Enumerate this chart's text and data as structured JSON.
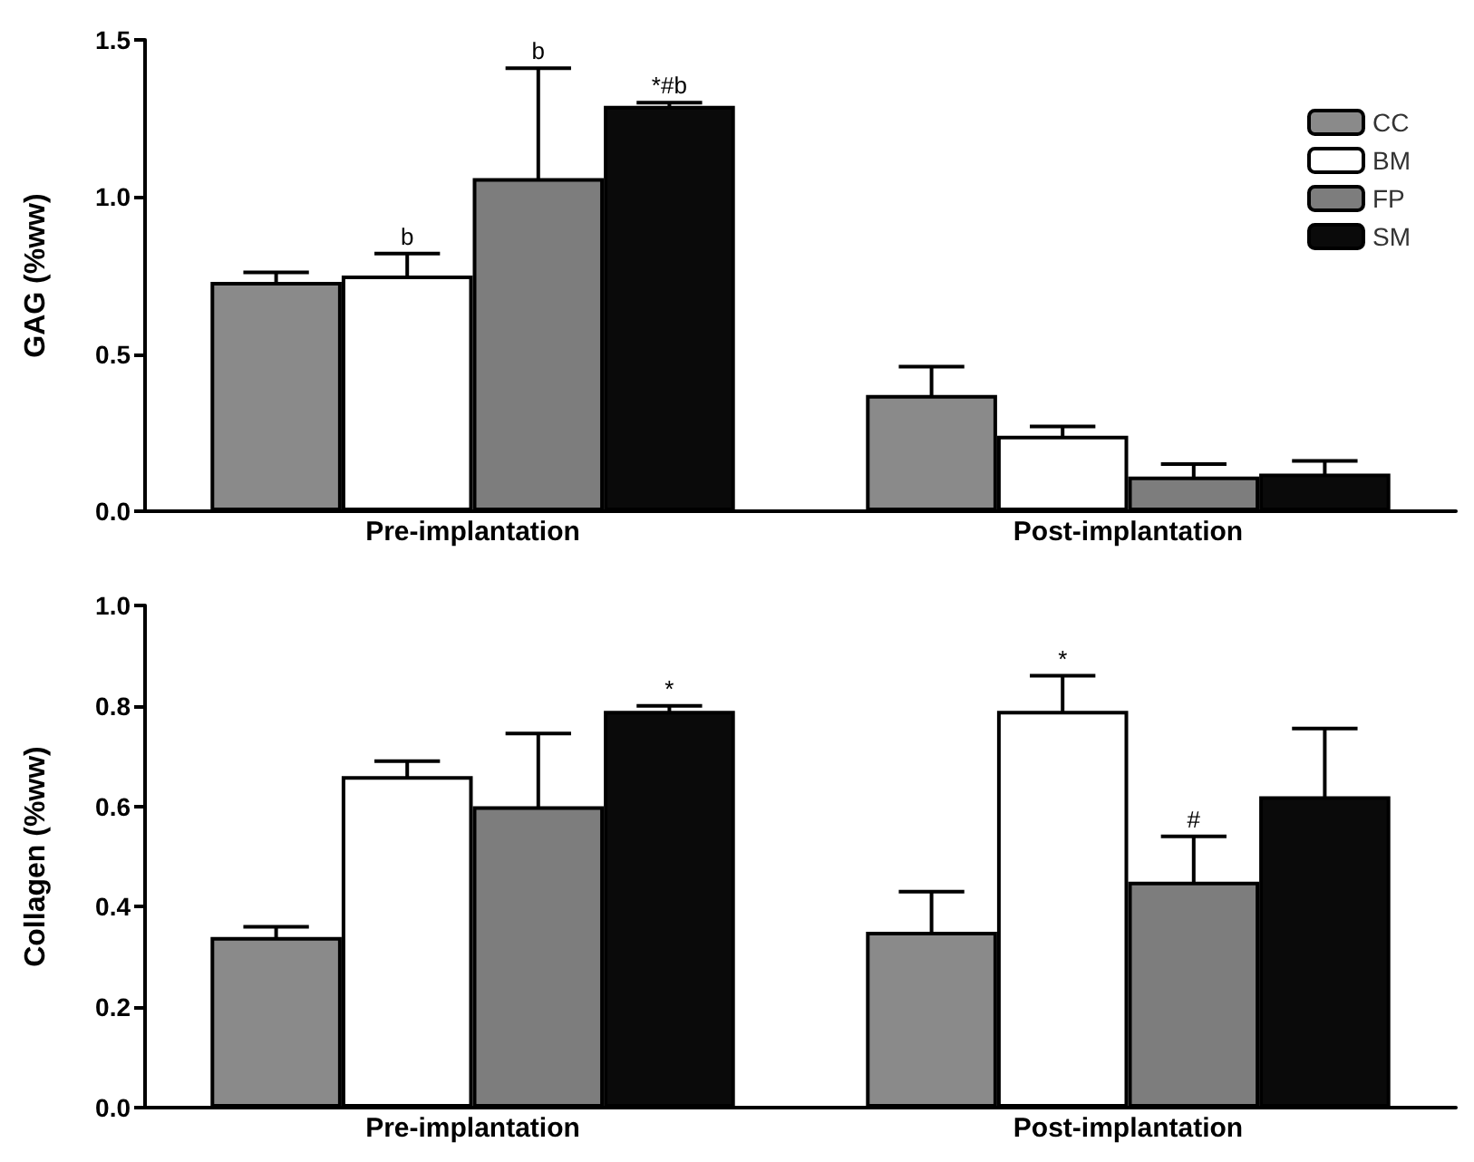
{
  "chart_data": [
    {
      "type": "bar",
      "ylabel": "GAG (%ww)",
      "categories": [
        "Pre-implantation",
        "Post-implantation"
      ],
      "series": [
        {
          "name": "CC",
          "color": "#8a8a8a",
          "values": [
            0.73,
            0.37
          ],
          "errors": [
            0.03,
            0.09
          ]
        },
        {
          "name": "BM",
          "color": "#ffffff",
          "values": [
            0.75,
            0.24
          ],
          "errors": [
            0.07,
            0.03
          ],
          "value_labels": [
            "b",
            null
          ]
        },
        {
          "name": "FP",
          "color": "#7d7d7d",
          "values": [
            1.06,
            0.11
          ],
          "errors": [
            0.35,
            0.04
          ]
        },
        {
          "name": "SM",
          "color": "#0a0a0a",
          "values": [
            1.29,
            0.12
          ],
          "errors": [
            0.01,
            0.04
          ],
          "value_labels": [
            "*#b",
            null
          ]
        }
      ],
      "ylim": [
        0,
        1.5
      ],
      "yticks": [
        {
          "value": 0,
          "label": "0.0"
        },
        {
          "value": 0.5,
          "label": "0.5"
        },
        {
          "value": 1,
          "label": "1.0"
        },
        {
          "value": 1.5,
          "label": "1.5"
        }
      ],
      "annotations": [
        "b"
      ],
      "legend": "top right",
      "grid": false
    },
    {
      "type": "bar",
      "ylabel": "Collagen (%ww)",
      "categories": [
        "Pre-implantation",
        "Post-implantation"
      ],
      "series": [
        {
          "color": "#8a8a8a",
          "values": [
            0.34,
            0.35
          ],
          "errors": [
            0.02,
            0.08
          ]
        },
        {
          "color": "#ffffff",
          "values": [
            0.66,
            0.79
          ],
          "errors": [
            0.03,
            0.07
          ],
          "value_labels": [
            null,
            "*"
          ]
        },
        {
          "color": "#7d7d7d",
          "values": [
            0.6,
            0.45
          ],
          "errors": [
            0.145,
            0.09
          ],
          "value_labels": [
            null,
            "#"
          ]
        },
        {
          "color": "#0a0a0a",
          "values": [
            0.79,
            0.62
          ],
          "errors": [
            0.01,
            0.135
          ],
          "value_labels": [
            "*",
            null
          ]
        }
      ],
      "ylim": [
        0,
        1
      ],
      "yticks": [
        {
          "value": 0,
          "label": "0.0"
        },
        {
          "value": 0.2,
          "label": "0.2"
        },
        {
          "value": 0.4,
          "label": "0.4"
        },
        {
          "value": 0.6,
          "label": "0.6"
        },
        {
          "value": 0.8,
          "label": "0.8"
        },
        {
          "value": 1,
          "label": "1.0"
        }
      ],
      "legend": false,
      "grid": false
    }
  ]
}
